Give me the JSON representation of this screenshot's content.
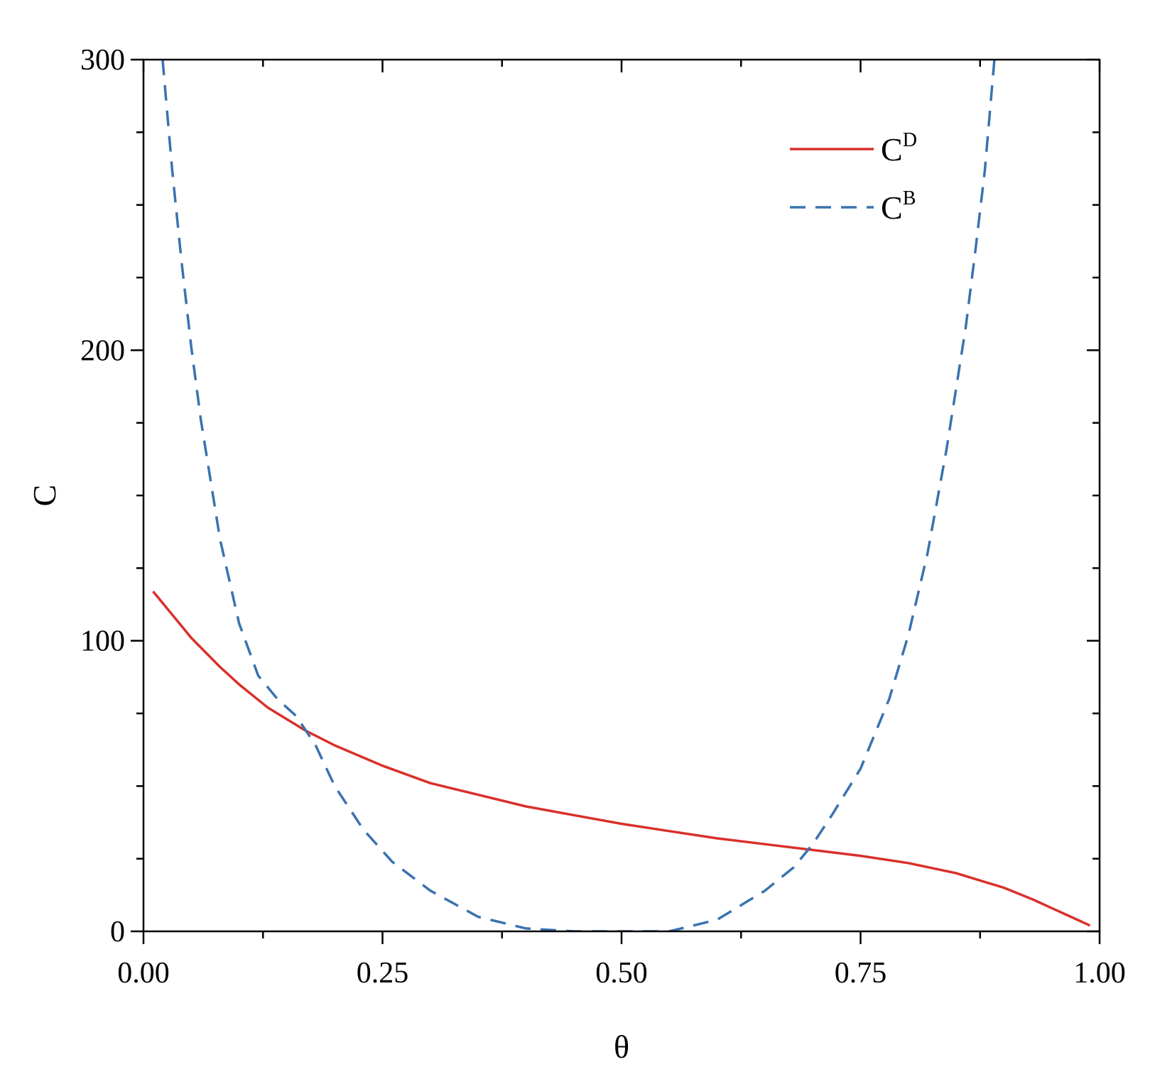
{
  "chart_data": {
    "type": "line",
    "title": "",
    "xlabel": "θ",
    "ylabel": "C",
    "xlim": [
      0.0,
      1.0
    ],
    "ylim": [
      0,
      300
    ],
    "x_ticks": [
      "0.00",
      "0.25",
      "0.50",
      "0.75",
      "1.00"
    ],
    "y_ticks": [
      "0",
      "100",
      "200",
      "300"
    ],
    "grid": false,
    "legend_position": "top-right",
    "series": [
      {
        "name": "C",
        "name_superscript": "D",
        "style": "solid",
        "color": "#d9302a",
        "x": [
          0.01,
          0.03,
          0.05,
          0.08,
          0.1,
          0.13,
          0.15,
          0.17,
          0.2,
          0.25,
          0.3,
          0.35,
          0.4,
          0.45,
          0.5,
          0.55,
          0.6,
          0.65,
          0.7,
          0.75,
          0.8,
          0.85,
          0.9,
          0.93,
          0.95,
          0.97,
          0.99
        ],
        "y": [
          117,
          109,
          101,
          91,
          85,
          77,
          73,
          69,
          64,
          57,
          51,
          47,
          43,
          40,
          37,
          34.5,
          32,
          30,
          28,
          26,
          23.5,
          20,
          15,
          11,
          8,
          5,
          2
        ]
      },
      {
        "name": "C",
        "name_superscript": "B",
        "style": "dashed",
        "color": "#3a72b0",
        "x": [
          0.02,
          0.03,
          0.04,
          0.05,
          0.06,
          0.08,
          0.1,
          0.12,
          0.14,
          0.16,
          0.18,
          0.2,
          0.23,
          0.26,
          0.3,
          0.35,
          0.4,
          0.45,
          0.5,
          0.55,
          0.6,
          0.65,
          0.68,
          0.7,
          0.72,
          0.75,
          0.78,
          0.8,
          0.82,
          0.84,
          0.86,
          0.87,
          0.88,
          0.89
        ],
        "y": [
          300,
          262,
          230,
          201,
          176,
          135,
          106,
          88,
          80,
          74,
          64,
          50,
          35,
          24,
          14,
          5,
          1,
          0,
          0,
          0,
          4,
          14,
          22,
          30,
          40,
          56,
          80,
          102,
          130,
          166,
          208,
          234,
          262,
          300
        ]
      }
    ]
  }
}
